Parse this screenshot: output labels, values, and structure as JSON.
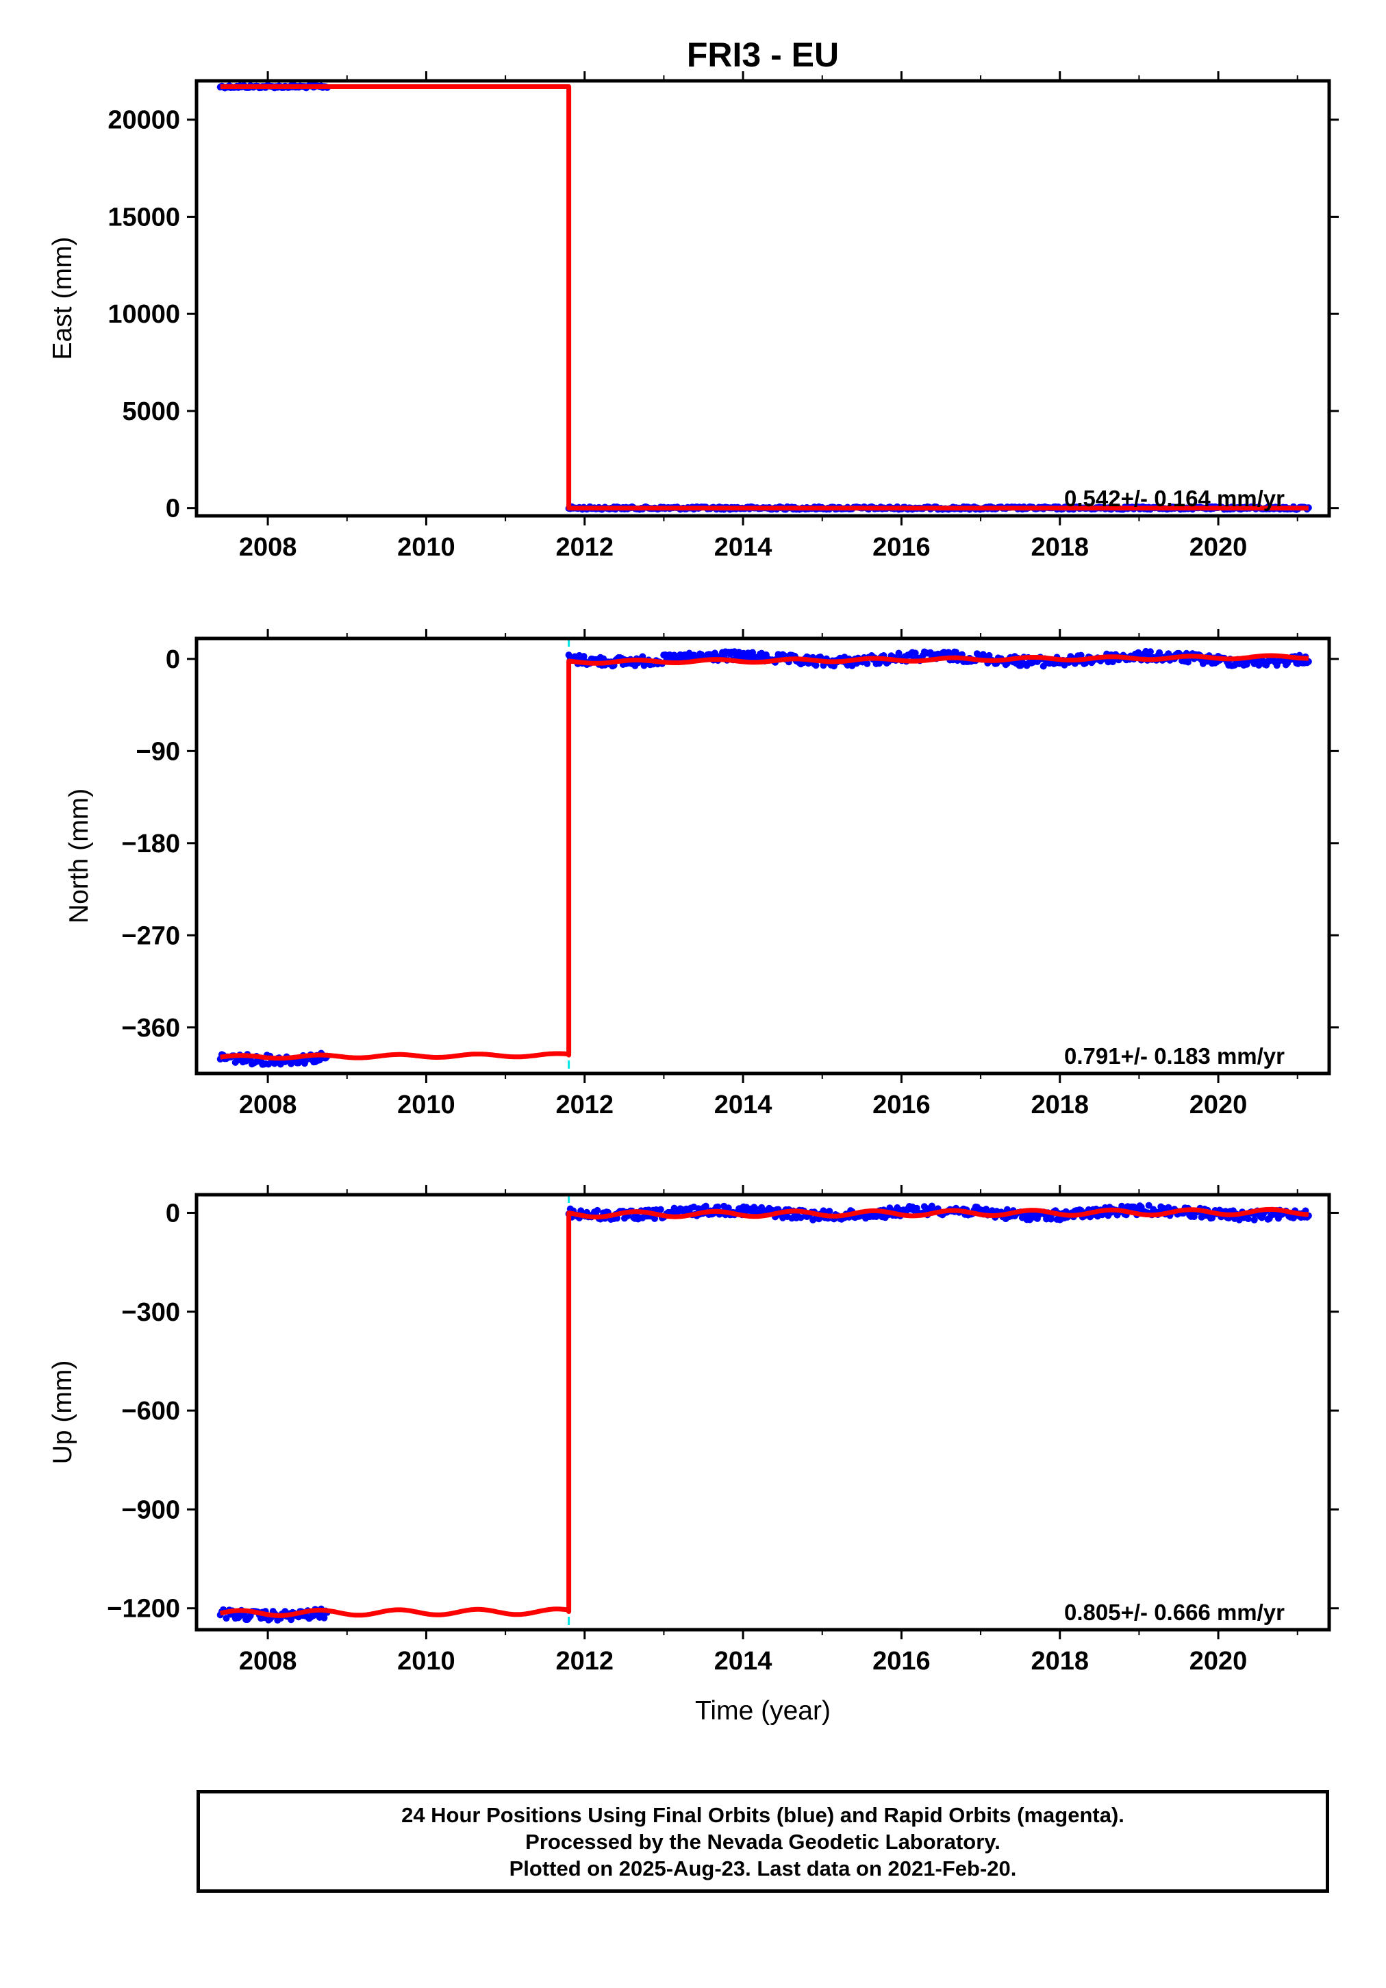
{
  "title": "FRI3 - EU",
  "xlabel": "Time (year)",
  "colors": {
    "final": "#0000ff",
    "rapid": "#ff00ff",
    "model": "#ff0000",
    "offset": "#00e5e5",
    "frame": "#000000"
  },
  "footer": {
    "line1": "24 Hour Positions Using Final Orbits (blue) and Rapid Orbits (magenta).",
    "line2": "Processed by the Nevada Geodetic Laboratory.",
    "line3": "Plotted on 2025-Aug-23. Last data on 2021-Feb-20."
  },
  "chart_data": [
    {
      "type": "scatter",
      "name": "east",
      "ylabel": "East (mm)",
      "xlim": [
        2007.1,
        2021.4
      ],
      "ylim": [
        -400,
        22000
      ],
      "xticks": [
        2008,
        2010,
        2012,
        2014,
        2016,
        2018,
        2020
      ],
      "yticks": [
        0,
        5000,
        10000,
        15000,
        20000
      ],
      "rate_label": "0.542+/- 0.164 mm/yr",
      "offset_epoch": 2011.8,
      "segments": [
        {
          "x_start": 2007.4,
          "x_end": 2008.75,
          "y": 21700
        },
        {
          "x_start": 2011.8,
          "x_end": 2021.14,
          "y": 0
        }
      ],
      "model_line": [
        [
          2007.4,
          21700
        ],
        [
          2011.8,
          21700
        ],
        [
          2011.8,
          0
        ],
        [
          2021.14,
          0
        ]
      ]
    },
    {
      "type": "scatter",
      "name": "north",
      "ylabel": "North (mm)",
      "xlim": [
        2007.1,
        2021.4
      ],
      "ylim": [
        -405,
        20
      ],
      "xticks": [
        2008,
        2010,
        2012,
        2014,
        2016,
        2018,
        2020
      ],
      "yticks": [
        0,
        -90,
        -180,
        -270,
        -360
      ],
      "rate_label": "0.791+/- 0.183 mm/yr",
      "offset_epoch": 2011.8,
      "segments": [
        {
          "x_start": 2007.4,
          "x_end": 2008.75,
          "y": -389
        },
        {
          "x_start": 2011.8,
          "x_end": 2021.14,
          "y": 0
        }
      ],
      "model_line": [
        [
          2007.4,
          -389
        ],
        [
          2011.8,
          -387
        ],
        [
          2011.8,
          -3
        ],
        [
          2021.14,
          2
        ]
      ]
    },
    {
      "type": "scatter",
      "name": "up",
      "ylabel": "Up (mm)",
      "xlim": [
        2007.1,
        2021.4
      ],
      "ylim": [
        -1265,
        55
      ],
      "xticks": [
        2008,
        2010,
        2012,
        2014,
        2016,
        2018,
        2020
      ],
      "yticks": [
        0,
        -300,
        -600,
        -900,
        -1200
      ],
      "rate_label": "0.805+/- 0.666 mm/yr",
      "offset_epoch": 2011.8,
      "segments": [
        {
          "x_start": 2007.4,
          "x_end": 2008.75,
          "y": -1215
        },
        {
          "x_start": 2011.8,
          "x_end": 2021.14,
          "y": 0
        }
      ],
      "model_line": [
        [
          2007.4,
          -1215
        ],
        [
          2011.8,
          -1210
        ],
        [
          2011.8,
          -5
        ],
        [
          2021.14,
          3
        ]
      ]
    }
  ]
}
